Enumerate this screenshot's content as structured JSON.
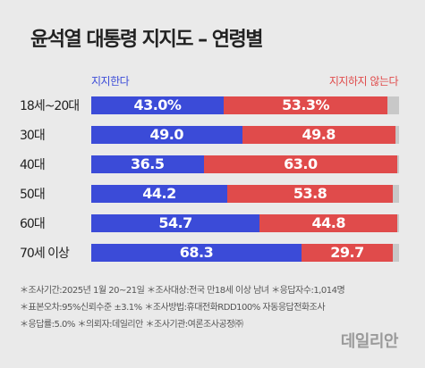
{
  "header": {
    "title": "윤석열 대통령 지지도 – 연령별"
  },
  "legend": {
    "support": "지지한다",
    "oppose": "지지하지 않는다"
  },
  "colors": {
    "support": "#3b4bd8",
    "oppose": "#e04b4b",
    "remainder": "#c8c8c8"
  },
  "chart_data": {
    "type": "bar",
    "orientation": "horizontal",
    "stacked": true,
    "categories": [
      "18세~20대",
      "30대",
      "40대",
      "50대",
      "60대",
      "70세 이상"
    ],
    "series": [
      {
        "name": "지지한다",
        "values": [
          43.0,
          49.0,
          36.5,
          44.2,
          54.7,
          68.3
        ],
        "labels": [
          "43.0%",
          "49.0",
          "36.5",
          "44.2",
          "54.7",
          "68.3"
        ]
      },
      {
        "name": "지지하지 않는다",
        "values": [
          53.3,
          49.8,
          63.0,
          53.8,
          44.8,
          29.7
        ],
        "labels": [
          "53.3%",
          "49.8",
          "63.0",
          "53.8",
          "44.8",
          "29.7"
        ]
      }
    ],
    "xlim": [
      0,
      100
    ]
  },
  "notes": [
    "＊조사기간:2025년 1월 20~21일  ＊조사대상:전국 만18세 이상 남녀  ＊응답자수:1,014명",
    "＊표본오차:95%신뢰수준 ±3.1%  ＊조사방법:휴대전화RDD100% 자동응답전화조사",
    "＊응답률:5.0%  ＊의뢰자:데일리안  ＊조사기관:여론조사공정㈜"
  ],
  "logo": "데일리안"
}
